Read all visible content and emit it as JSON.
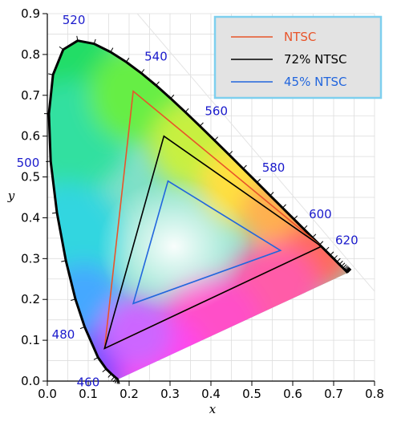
{
  "chart_data": {
    "type": "line",
    "title": "",
    "xlabel": "x",
    "ylabel": "y",
    "xlim": [
      0.0,
      0.8
    ],
    "ylim": [
      0.0,
      0.9
    ],
    "xticks": [
      "0.0",
      "0.1",
      "0.2",
      "0.3",
      "0.4",
      "0.5",
      "0.6",
      "0.7",
      "0.8"
    ],
    "yticks": [
      "0.0",
      "0.1",
      "0.2",
      "0.3",
      "0.4",
      "0.5",
      "0.6",
      "0.7",
      "0.8",
      "0.9"
    ],
    "grid": true,
    "legend_position": "top-right",
    "spectral_locus": [
      [
        0.1741,
        0.005
      ],
      [
        0.1738,
        0.0049
      ],
      [
        0.1733,
        0.0048
      ],
      [
        0.1726,
        0.0048
      ],
      [
        0.1714,
        0.0051
      ],
      [
        0.1689,
        0.0069
      ],
      [
        0.1644,
        0.0109
      ],
      [
        0.1566,
        0.0177
      ],
      [
        0.144,
        0.0297
      ],
      [
        0.1241,
        0.0578
      ],
      [
        0.0913,
        0.1327
      ],
      [
        0.0687,
        0.2007
      ],
      [
        0.0454,
        0.295
      ],
      [
        0.0235,
        0.4127
      ],
      [
        0.0082,
        0.5384
      ],
      [
        0.0039,
        0.6548
      ],
      [
        0.0139,
        0.7502
      ],
      [
        0.0389,
        0.812
      ],
      [
        0.0743,
        0.8338
      ],
      [
        0.1142,
        0.8262
      ],
      [
        0.1547,
        0.8059
      ],
      [
        0.1929,
        0.7816
      ],
      [
        0.2296,
        0.7543
      ],
      [
        0.2658,
        0.7243
      ],
      [
        0.3016,
        0.6923
      ],
      [
        0.3373,
        0.6589
      ],
      [
        0.3731,
        0.6245
      ],
      [
        0.4087,
        0.5896
      ],
      [
        0.4441,
        0.5547
      ],
      [
        0.4788,
        0.5202
      ],
      [
        0.5125,
        0.4866
      ],
      [
        0.5448,
        0.4544
      ],
      [
        0.5752,
        0.4242
      ],
      [
        0.6029,
        0.3965
      ],
      [
        0.627,
        0.3725
      ],
      [
        0.6482,
        0.3514
      ],
      [
        0.6658,
        0.334
      ],
      [
        0.6801,
        0.3197
      ],
      [
        0.6915,
        0.3083
      ],
      [
        0.7006,
        0.2993
      ],
      [
        0.7079,
        0.292
      ],
      [
        0.714,
        0.2859
      ],
      [
        0.719,
        0.2809
      ],
      [
        0.723,
        0.277
      ],
      [
        0.726,
        0.274
      ],
      [
        0.7283,
        0.2717
      ],
      [
        0.73,
        0.27
      ],
      [
        0.7311,
        0.2689
      ],
      [
        0.732,
        0.268
      ],
      [
        0.7327,
        0.2673
      ],
      [
        0.7334,
        0.2666
      ],
      [
        0.734,
        0.266
      ],
      [
        0.7344,
        0.2656
      ],
      [
        0.7346,
        0.2654
      ],
      [
        0.7347,
        0.2653
      ]
    ],
    "wavelength_labels": [
      {
        "label": "460",
        "x": 0.144,
        "y": 0.0297
      },
      {
        "label": "480",
        "x": 0.0913,
        "y": 0.1327
      },
      {
        "label": "500",
        "x": 0.0082,
        "y": 0.5384
      },
      {
        "label": "520",
        "x": 0.0743,
        "y": 0.8338
      },
      {
        "label": "540",
        "x": 0.2296,
        "y": 0.7543
      },
      {
        "label": "560",
        "x": 0.3731,
        "y": 0.6245
      },
      {
        "label": "580",
        "x": 0.5125,
        "y": 0.4866
      },
      {
        "label": "600",
        "x": 0.627,
        "y": 0.3725
      },
      {
        "label": "620",
        "x": 0.6915,
        "y": 0.3083
      }
    ],
    "series": [
      {
        "name": "NTSC",
        "color": "#e8542a",
        "points": [
          [
            0.67,
            0.33
          ],
          [
            0.21,
            0.71
          ],
          [
            0.14,
            0.08
          ]
        ]
      },
      {
        "name": "72% NTSC",
        "color": "#000000",
        "points": [
          [
            0.67,
            0.33
          ],
          [
            0.285,
            0.6
          ],
          [
            0.14,
            0.08
          ]
        ]
      },
      {
        "name": "45% NTSC",
        "color": "#2266dd",
        "points": [
          [
            0.57,
            0.32
          ],
          [
            0.295,
            0.49
          ],
          [
            0.21,
            0.19
          ]
        ]
      }
    ]
  }
}
